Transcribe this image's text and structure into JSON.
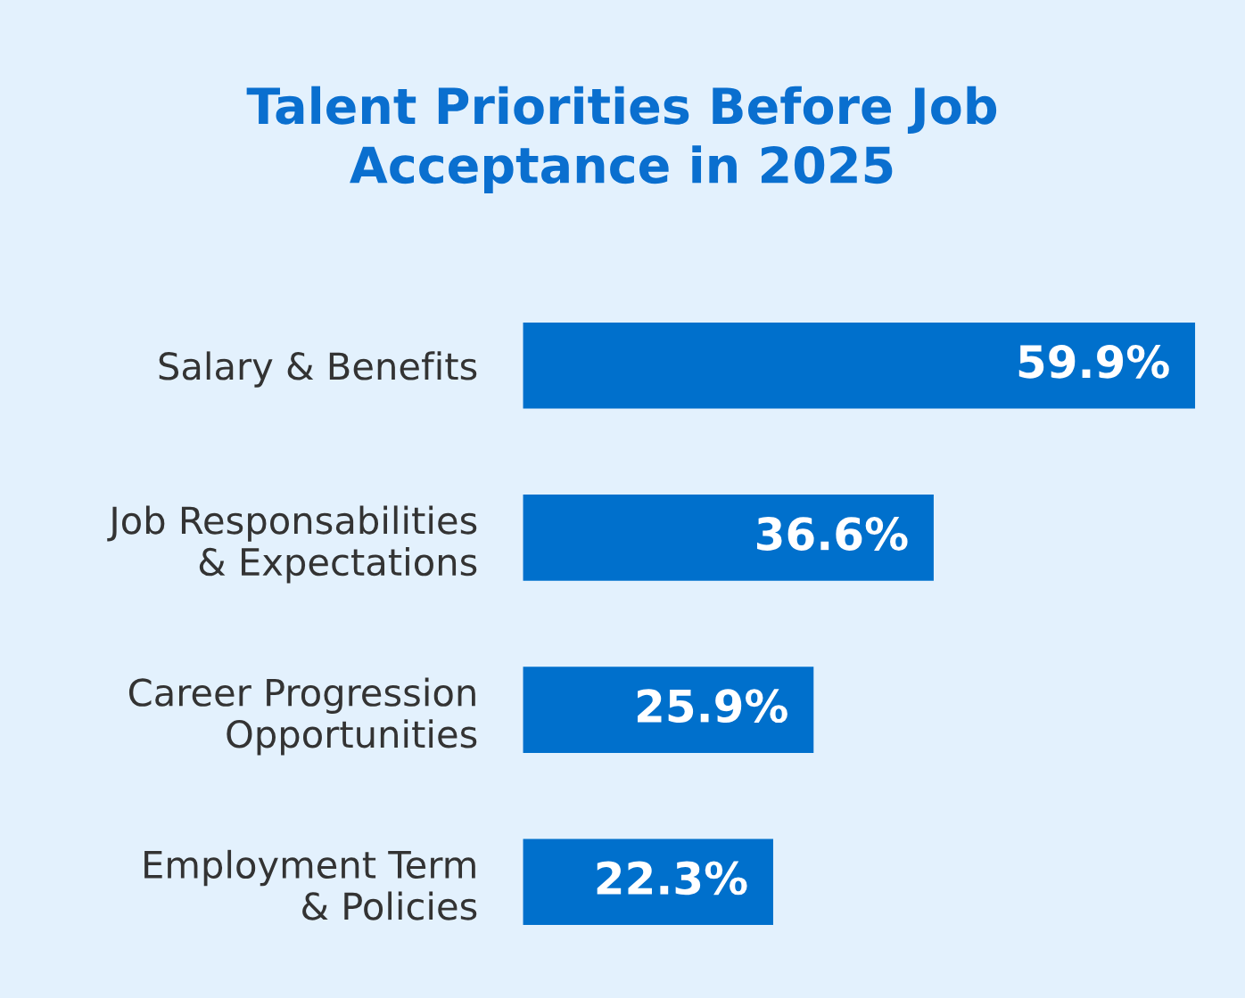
{
  "chart_data": {
    "type": "bar",
    "orientation": "horizontal",
    "title": "Talent Priorities Before Job\nAcceptance in 2025",
    "categories": [
      "Salary & Benefits",
      "Job Responsabilities\n& Expectations",
      "Career Progression\nOpportunities",
      "Employment Term\n& Policies"
    ],
    "values": [
      59.9,
      36.6,
      25.9,
      22.3
    ],
    "value_labels": [
      "59.9%",
      "36.6%",
      "25.9%",
      "22.3%"
    ],
    "color": "#0070cc",
    "grid": false,
    "legend": false
  }
}
